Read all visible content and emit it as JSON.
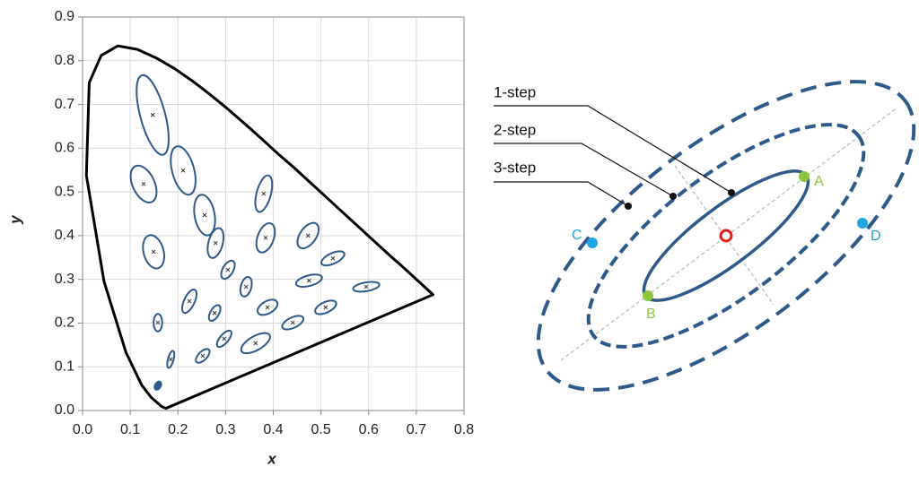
{
  "chart_data": {
    "type": "ellipse",
    "x_label": "x",
    "y_label": "y",
    "xlim": [
      0,
      0.8
    ],
    "ylim": [
      0,
      0.9
    ],
    "grid": true,
    "xticks": [
      {
        "value": 0,
        "label": "0.0"
      },
      {
        "value": 0.1,
        "label": "0.1"
      },
      {
        "value": 0.2,
        "label": "0.2"
      },
      {
        "value": 0.3,
        "label": "0.3"
      },
      {
        "value": 0.4,
        "label": "0.4"
      },
      {
        "value": 0.5,
        "label": "0.5"
      },
      {
        "value": 0.6,
        "label": "0.6"
      },
      {
        "value": 0.7,
        "label": "0.7"
      },
      {
        "value": 0.8,
        "label": "0.8"
      }
    ],
    "yticks": [
      {
        "value": 0,
        "label": "0.0"
      },
      {
        "value": 0.1,
        "label": "0.1"
      },
      {
        "value": 0.2,
        "label": "0.2"
      },
      {
        "value": 0.3,
        "label": "0.3"
      },
      {
        "value": 0.4,
        "label": "0.4"
      },
      {
        "value": 0.5,
        "label": "0.5"
      },
      {
        "value": 0.6,
        "label": "0.6"
      },
      {
        "value": 0.7,
        "label": "0.7"
      },
      {
        "value": 0.8,
        "label": "0.8"
      },
      {
        "value": 0.9,
        "label": "0.9"
      }
    ],
    "locus": {
      "color": "#000000",
      "x": [
        0.175,
        0.166,
        0.144,
        0.124,
        0.091,
        0.045,
        0.008,
        0.014,
        0.039,
        0.074,
        0.115,
        0.155,
        0.193,
        0.23,
        0.266,
        0.302,
        0.337,
        0.373,
        0.408,
        0.444,
        0.479,
        0.512,
        0.544,
        0.575,
        0.602,
        0.627,
        0.648,
        0.666,
        0.68,
        0.691,
        0.701,
        0.735
      ],
      "y": [
        0.005,
        0.009,
        0.03,
        0.058,
        0.133,
        0.295,
        0.538,
        0.75,
        0.812,
        0.834,
        0.826,
        0.806,
        0.782,
        0.754,
        0.724,
        0.692,
        0.659,
        0.624,
        0.589,
        0.555,
        0.52,
        0.487,
        0.455,
        0.424,
        0.397,
        0.372,
        0.351,
        0.334,
        0.32,
        0.309,
        0.299,
        0.265
      ]
    },
    "ellipses": {
      "color": "#2e5a8a",
      "x": [
        0.147,
        0.211,
        0.128,
        0.256,
        0.149,
        0.279,
        0.38,
        0.384,
        0.473,
        0.305,
        0.343,
        0.525,
        0.475,
        0.595,
        0.224,
        0.277,
        0.388,
        0.51,
        0.158,
        0.297,
        0.441,
        0.363,
        0.252,
        0.185,
        0.158
      ],
      "y": [
        0.676,
        0.549,
        0.518,
        0.447,
        0.363,
        0.383,
        0.496,
        0.395,
        0.4,
        0.322,
        0.283,
        0.348,
        0.297,
        0.283,
        0.25,
        0.223,
        0.236,
        0.236,
        0.201,
        0.164,
        0.201,
        0.154,
        0.125,
        0.117,
        0.057
      ],
      "rx": [
        0.026,
        0.023,
        0.023,
        0.021,
        0.021,
        0.015,
        0.015,
        0.017,
        0.017,
        0.011,
        0.011,
        0.026,
        0.028,
        0.028,
        0.011,
        0.009,
        0.023,
        0.024,
        0.009,
        0.009,
        0.024,
        0.034,
        0.009,
        0.006,
        0.006
      ],
      "ry": [
        0.094,
        0.057,
        0.045,
        0.047,
        0.039,
        0.035,
        0.043,
        0.035,
        0.033,
        0.023,
        0.023,
        0.012,
        0.012,
        0.01,
        0.029,
        0.02,
        0.014,
        0.012,
        0.02,
        0.023,
        0.012,
        0.016,
        0.02,
        0.02,
        0.01
      ],
      "angle": [
        -15,
        -15,
        -25,
        -10,
        -15,
        15,
        15,
        20,
        35,
        30,
        15,
        -25,
        -15,
        -10,
        25,
        30,
        -30,
        -25,
        0,
        40,
        -25,
        -30,
        45,
        15,
        30
      ]
    }
  },
  "diagram": {
    "steps": [
      "1-step",
      "2-step",
      "3-step"
    ],
    "points": [
      "A",
      "B",
      "C",
      "D"
    ]
  }
}
